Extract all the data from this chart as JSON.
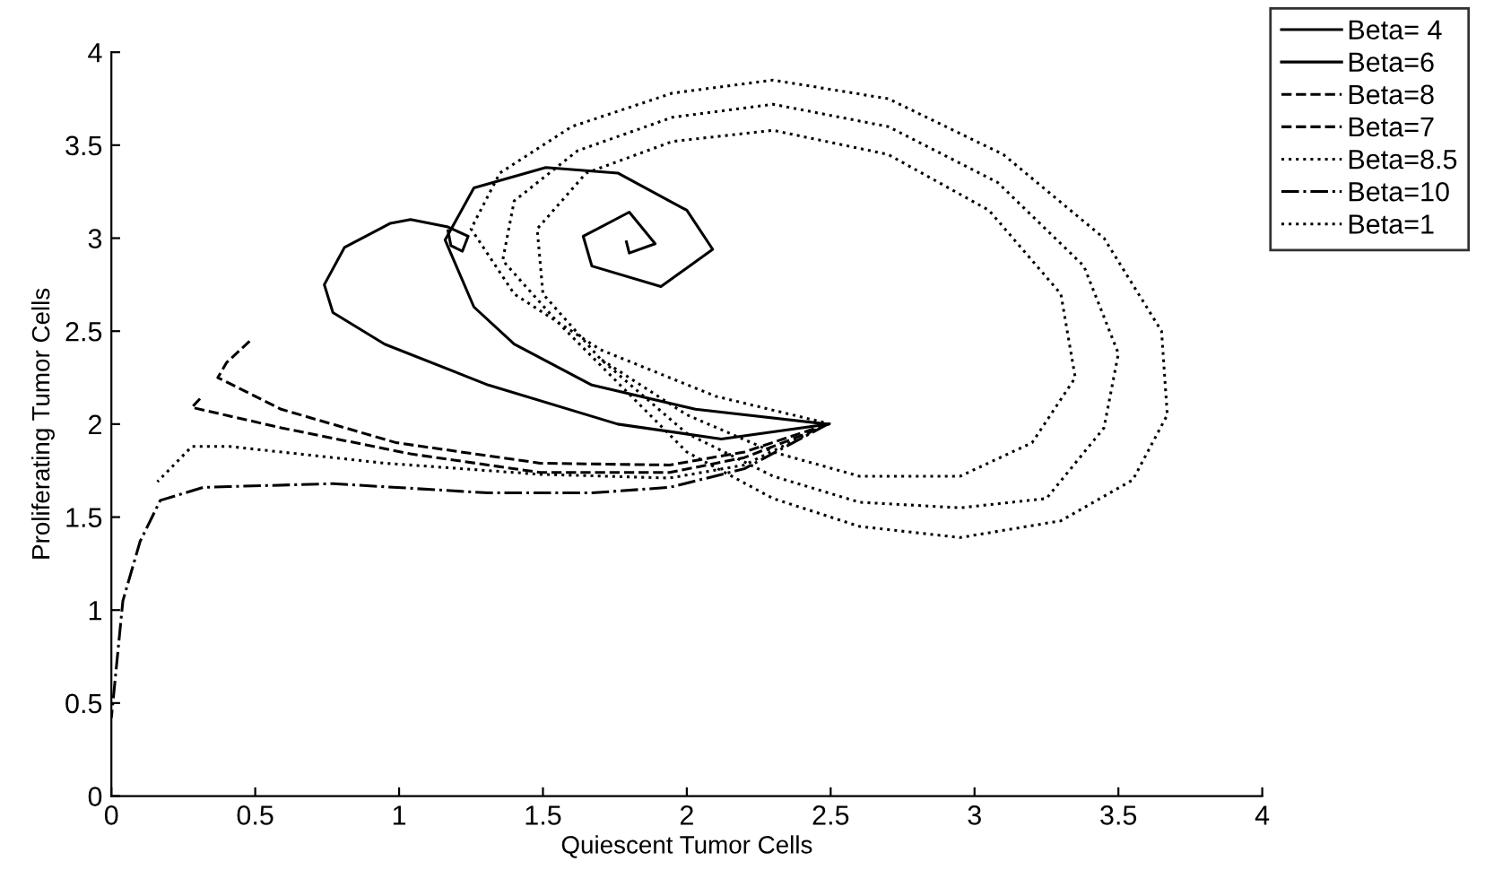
{
  "chart_data": {
    "type": "line",
    "xlabel": "Quiescent Tumor Cells",
    "ylabel": "Proliferating Tumor Cells",
    "xlim": [
      0,
      4
    ],
    "ylim": [
      0,
      4
    ],
    "xticks": [
      0,
      0.5,
      1,
      1.5,
      2,
      2.5,
      3,
      3.5,
      4
    ],
    "yticks": [
      0,
      0.5,
      1,
      1.5,
      2,
      2.5,
      3,
      3.5,
      4
    ],
    "grid": false,
    "legend": "top right",
    "marker": "none",
    "series": [
      {
        "name": "Beta= 4",
        "color": "#000000",
        "line_style": "solid",
        "x": [
          2.49,
          2.03,
          1.67,
          1.4,
          1.26,
          1.16,
          1.26,
          1.51,
          1.76,
          2.0,
          2.09,
          1.91,
          1.67,
          1.64,
          1.8,
          1.89,
          1.8,
          1.79
        ],
        "values": [
          2.0,
          2.08,
          2.21,
          2.43,
          2.63,
          2.99,
          3.27,
          3.38,
          3.35,
          3.15,
          2.94,
          2.74,
          2.85,
          3.01,
          3.14,
          2.97,
          2.92,
          2.98
        ]
      },
      {
        "name": "Beta=6",
        "color": "#000000",
        "line_style": "solid",
        "x": [
          2.49,
          2.12,
          1.76,
          1.31,
          0.95,
          0.77,
          0.74,
          0.81,
          0.97,
          1.04,
          1.17,
          1.24,
          1.22,
          1.18,
          1.17
        ],
        "values": [
          2.0,
          1.92,
          2.0,
          2.21,
          2.43,
          2.6,
          2.75,
          2.95,
          3.08,
          3.1,
          3.06,
          3.01,
          2.93,
          2.96,
          3.04
        ]
      },
      {
        "name": "Beta=8",
        "color": "#000000",
        "line_style": "dashed",
        "x": [
          2.49,
          2.2,
          1.94,
          1.49,
          0.99,
          0.59,
          0.37,
          0.4,
          0.49
        ],
        "values": [
          2.0,
          1.85,
          1.78,
          1.79,
          1.9,
          2.08,
          2.25,
          2.33,
          2.46
        ]
      },
      {
        "name": "Beta=7",
        "color": "#000000",
        "line_style": "dashed",
        "x": [
          2.45,
          2.2,
          1.94,
          1.49,
          1.04,
          0.59,
          0.28,
          0.31
        ],
        "values": [
          1.97,
          1.82,
          1.74,
          1.74,
          1.84,
          1.98,
          2.09,
          2.14
        ]
      },
      {
        "name": "Beta=8.5",
        "color": "#000000",
        "line_style": "dotted",
        "x": [
          2.45,
          2.2,
          1.94,
          1.49,
          0.95,
          0.41,
          0.28,
          0.16
        ],
        "values": [
          1.97,
          1.78,
          1.71,
          1.73,
          1.79,
          1.88,
          1.88,
          1.69
        ]
      },
      {
        "name": "Beta=10",
        "color": "#000000",
        "line_style": "dashdot",
        "x": [
          2.49,
          2.2,
          1.94,
          1.67,
          1.31,
          0.77,
          0.32,
          0.17,
          0.1,
          0.04,
          0.0
        ],
        "values": [
          2.0,
          1.76,
          1.66,
          1.63,
          1.63,
          1.68,
          1.66,
          1.59,
          1.37,
          1.05,
          0.42
        ]
      },
      {
        "name": "Beta=1",
        "color": "#000000",
        "line_style": "dotted",
        "x": [
          2.5,
          2.1,
          1.7,
          1.4,
          1.25,
          1.35,
          1.6,
          1.95,
          2.3,
          2.7,
          3.1,
          3.45,
          3.65,
          3.67,
          3.55,
          3.3,
          2.95,
          2.6,
          2.3,
          2.0,
          1.55,
          1.36,
          1.4,
          1.62,
          1.95,
          2.3,
          2.7,
          3.08,
          3.38,
          3.5,
          3.45,
          3.25,
          2.95,
          2.6,
          2.3,
          2.0,
          1.7,
          1.5,
          1.48,
          1.65,
          1.95,
          2.3,
          2.7,
          3.05,
          3.3,
          3.35,
          3.2,
          2.95,
          2.6,
          2.3,
          2.0,
          1.7
        ],
        "values": [
          2.0,
          2.15,
          2.4,
          2.7,
          3.05,
          3.35,
          3.6,
          3.78,
          3.85,
          3.75,
          3.45,
          3.0,
          2.5,
          2.05,
          1.7,
          1.48,
          1.39,
          1.45,
          1.6,
          1.85,
          2.55,
          2.88,
          3.2,
          3.47,
          3.65,
          3.72,
          3.6,
          3.3,
          2.85,
          2.38,
          1.98,
          1.6,
          1.55,
          1.58,
          1.72,
          1.95,
          2.35,
          2.7,
          3.05,
          3.35,
          3.52,
          3.58,
          3.45,
          3.15,
          2.7,
          2.25,
          1.9,
          1.72,
          1.72,
          1.85,
          2.05,
          2.35
        ]
      }
    ]
  }
}
